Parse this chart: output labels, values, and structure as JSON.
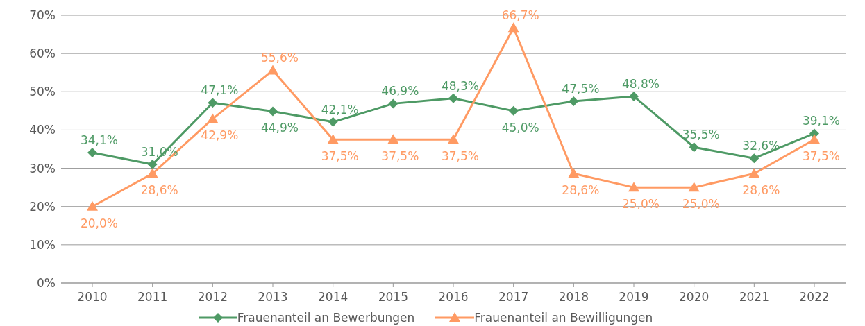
{
  "chart_data": {
    "type": "line",
    "categories": [
      "2010",
      "2011",
      "2012",
      "2013",
      "2014",
      "2015",
      "2016",
      "2017",
      "2018",
      "2019",
      "2020",
      "2021",
      "2022"
    ],
    "series": [
      {
        "name": "Frauenanteil an Bewerbungen",
        "color": "#4e9a65",
        "marker": "diamond",
        "values": [
          34.1,
          31.0,
          47.1,
          44.9,
          42.1,
          46.9,
          48.3,
          45.0,
          47.5,
          48.8,
          35.5,
          32.6,
          39.1
        ],
        "value_labels": [
          "34,1%",
          "31,0%",
          "47,1%",
          "44,9%",
          "42,1%",
          "46,9%",
          "48,3%",
          "45,0%",
          "47,5%",
          "48,8%",
          "35,5%",
          "32,6%",
          "39,1%"
        ]
      },
      {
        "name": "Frauenanteil an Bewilligungen",
        "color": "#ff9a63",
        "marker": "triangle",
        "values": [
          20.0,
          28.6,
          42.9,
          55.6,
          37.5,
          37.5,
          37.5,
          66.7,
          28.6,
          25.0,
          25.0,
          28.6,
          37.5
        ],
        "value_labels": [
          "20,0%",
          "28,6%",
          "42,9%",
          "55,6%",
          "37,5%",
          "37,5%",
          "37,5%",
          "66,7%",
          "28,6%",
          "25,0%",
          "25,0%",
          "28,6%",
          "37,5%"
        ]
      }
    ],
    "ylim": [
      0,
      70
    ],
    "yticks": [
      {
        "value": 0,
        "label": "0%"
      },
      {
        "value": 10,
        "label": "10%"
      },
      {
        "value": 20,
        "label": "20%"
      },
      {
        "value": 30,
        "label": "30%"
      },
      {
        "value": 40,
        "label": "40%"
      },
      {
        "value": 50,
        "label": "50%"
      },
      {
        "value": 60,
        "label": "60%"
      },
      {
        "value": 70,
        "label": "70%"
      }
    ],
    "grid": "y",
    "legend": "bottom",
    "line_style": "solid"
  }
}
